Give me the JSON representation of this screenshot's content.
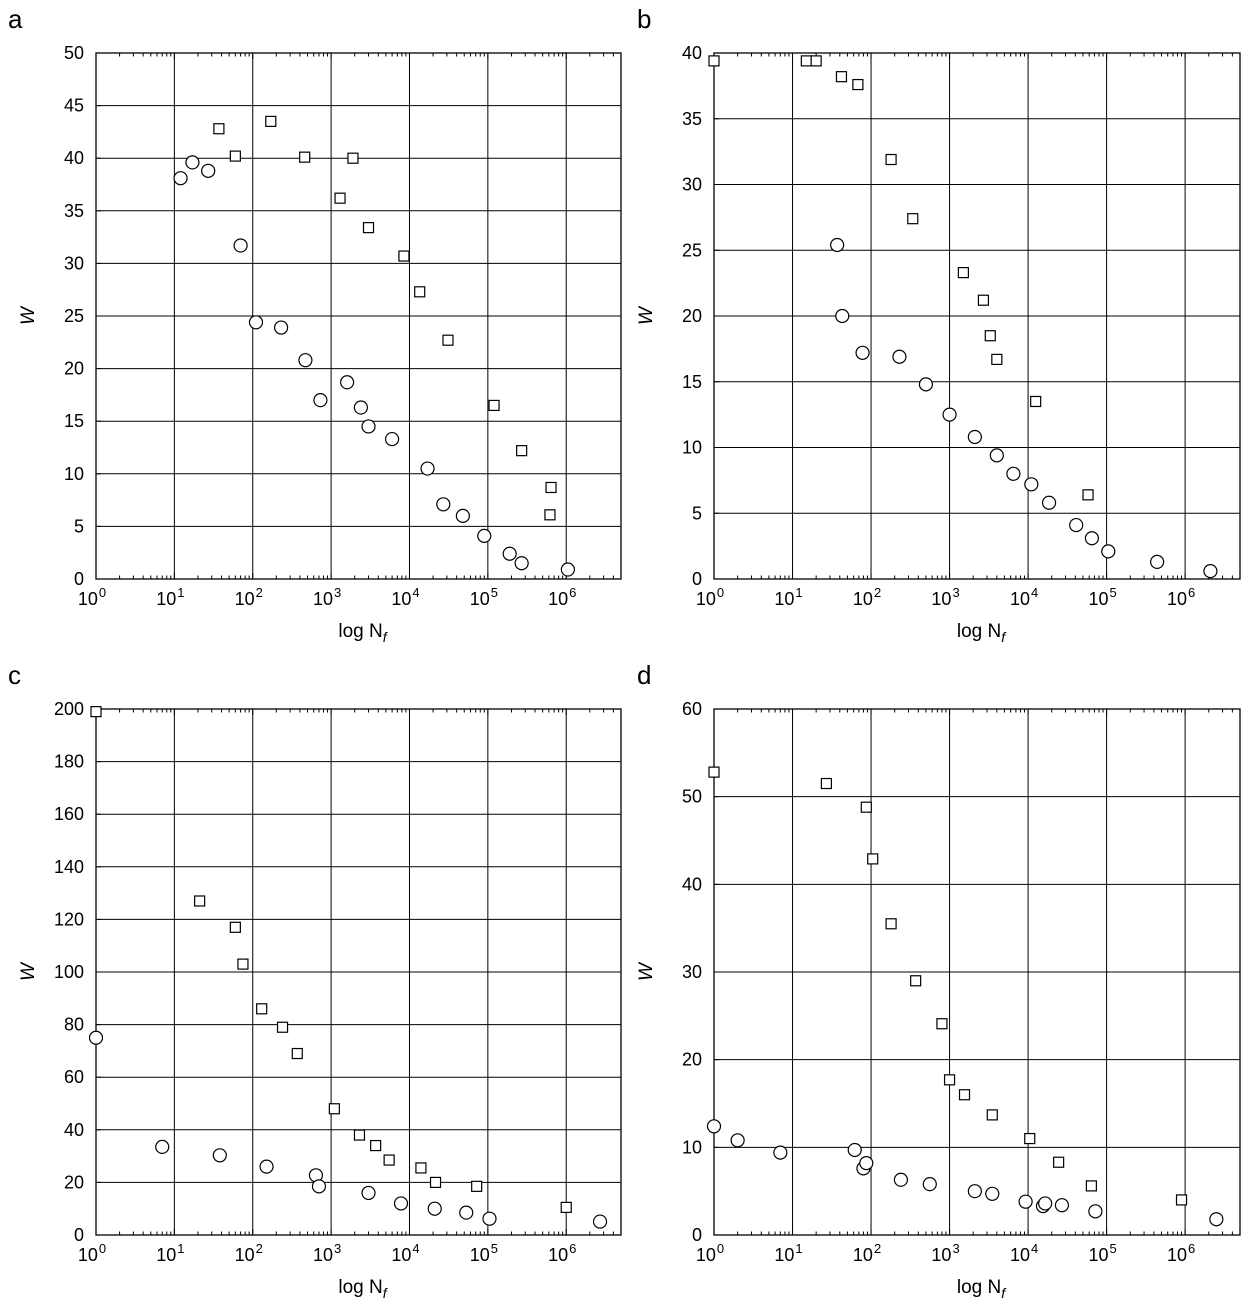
{
  "chart_data": [
    {
      "panel_label": "a",
      "type": "scatter",
      "xlabel": "log N",
      "xlabel_sub": "f",
      "ylabel": "W",
      "xscale": "log",
      "xlim": [
        1,
        5000000
      ],
      "ylim": [
        0,
        50
      ],
      "y_ticks": [
        0,
        5,
        10,
        15,
        20,
        25,
        30,
        35,
        40,
        45,
        50
      ],
      "x_tick_exponents": [
        0,
        1,
        2,
        3,
        4,
        5,
        6
      ],
      "x_tick_base": "10",
      "grid": true,
      "series": [
        {
          "marker": "square",
          "points": [
            [
              37,
              42.8
            ],
            [
              60,
              40.2
            ],
            [
              170,
              43.5
            ],
            [
              460,
              40.1
            ],
            [
              1300,
              36.2
            ],
            [
              1900,
              40.0
            ],
            [
              3000,
              33.4
            ],
            [
              8500,
              30.7
            ],
            [
              13500,
              27.3
            ],
            [
              31000,
              22.7
            ],
            [
              120000,
              16.5
            ],
            [
              270000,
              12.2
            ],
            [
              640000,
              8.7
            ],
            [
              620000,
              6.1
            ]
          ]
        },
        {
          "marker": "circle",
          "points": [
            [
              12,
              38.1
            ],
            [
              17,
              39.6
            ],
            [
              27,
              38.8
            ],
            [
              70,
              31.7
            ],
            [
              110,
              24.4
            ],
            [
              230,
              23.9
            ],
            [
              470,
              20.8
            ],
            [
              730,
              17.0
            ],
            [
              1600,
              18.7
            ],
            [
              2400,
              16.3
            ],
            [
              3000,
              14.5
            ],
            [
              6000,
              13.3
            ],
            [
              17000,
              10.5
            ],
            [
              27000,
              7.1
            ],
            [
              48000,
              6.0
            ],
            [
              90000,
              4.1
            ],
            [
              190000,
              2.4
            ],
            [
              270000,
              1.5
            ],
            [
              1050000,
              0.9
            ]
          ]
        }
      ]
    },
    {
      "panel_label": "b",
      "type": "scatter",
      "xlabel": "log N",
      "xlabel_sub": "f",
      "ylabel": "W",
      "xscale": "log",
      "xlim": [
        1,
        5000000
      ],
      "ylim": [
        0,
        40
      ],
      "y_ticks": [
        0,
        5,
        10,
        15,
        20,
        25,
        30,
        35,
        40
      ],
      "x_tick_exponents": [
        0,
        1,
        2,
        3,
        4,
        5,
        6
      ],
      "x_tick_base": "10",
      "grid": true,
      "series": [
        {
          "marker": "square",
          "points": [
            [
              1,
              39.4
            ],
            [
              15,
              39.4
            ],
            [
              20,
              39.4
            ],
            [
              42,
              38.2
            ],
            [
              68,
              37.6
            ],
            [
              180,
              31.9
            ],
            [
              340,
              27.4
            ],
            [
              1500,
              23.3
            ],
            [
              2700,
              21.2
            ],
            [
              3300,
              18.5
            ],
            [
              4000,
              16.7
            ],
            [
              12500,
              13.5
            ],
            [
              58000,
              6.4
            ]
          ]
        },
        {
          "marker": "circle",
          "points": [
            [
              37,
              25.4
            ],
            [
              43,
              20.0
            ],
            [
              78,
              17.2
            ],
            [
              230,
              16.9
            ],
            [
              500,
              14.8
            ],
            [
              1000,
              12.5
            ],
            [
              2100,
              10.8
            ],
            [
              4000,
              9.4
            ],
            [
              6500,
              8.0
            ],
            [
              11000,
              7.2
            ],
            [
              18500,
              5.8
            ],
            [
              41000,
              4.1
            ],
            [
              65000,
              3.1
            ],
            [
              105000,
              2.1
            ],
            [
              440000,
              1.3
            ],
            [
              2100000,
              0.6
            ]
          ]
        }
      ]
    },
    {
      "panel_label": "c",
      "type": "scatter",
      "xlabel": "log N",
      "xlabel_sub": "f",
      "ylabel": "W",
      "xscale": "log",
      "xlim": [
        1,
        5000000
      ],
      "ylim": [
        0,
        200
      ],
      "y_ticks": [
        0,
        20,
        40,
        60,
        80,
        100,
        120,
        140,
        160,
        180,
        200
      ],
      "x_tick_exponents": [
        0,
        1,
        2,
        3,
        4,
        5,
        6
      ],
      "x_tick_base": "10",
      "grid": true,
      "series": [
        {
          "marker": "square",
          "points": [
            [
              1,
              199
            ],
            [
              21,
              127
            ],
            [
              60,
              117
            ],
            [
              75,
              103
            ],
            [
              130,
              86
            ],
            [
              240,
              79
            ],
            [
              370,
              69
            ],
            [
              1100,
              48
            ],
            [
              2300,
              38
            ],
            [
              3700,
              34
            ],
            [
              5500,
              28.5
            ],
            [
              14000,
              25.5
            ],
            [
              21500,
              20
            ],
            [
              72000,
              18.5
            ],
            [
              1000000,
              10.5
            ]
          ]
        },
        {
          "marker": "circle",
          "points": [
            [
              1,
              75
            ],
            [
              7,
              33.5
            ],
            [
              38,
              30.3
            ],
            [
              150,
              26
            ],
            [
              640,
              22.7
            ],
            [
              700,
              18.5
            ],
            [
              3000,
              16
            ],
            [
              7800,
              12
            ],
            [
              21000,
              10
            ],
            [
              53000,
              8.5
            ],
            [
              105000,
              6.2
            ],
            [
              2700000,
              5.1
            ]
          ]
        }
      ]
    },
    {
      "panel_label": "d",
      "type": "scatter",
      "xlabel": "log N",
      "xlabel_sub": "f",
      "ylabel": "W",
      "xscale": "log",
      "xlim": [
        1,
        5000000
      ],
      "ylim": [
        0,
        60
      ],
      "y_ticks": [
        0,
        10,
        20,
        30,
        40,
        50,
        60
      ],
      "x_tick_exponents": [
        0,
        1,
        2,
        3,
        4,
        5,
        6
      ],
      "x_tick_base": "10",
      "grid": true,
      "series": [
        {
          "marker": "square",
          "points": [
            [
              1,
              52.8
            ],
            [
              27,
              51.5
            ],
            [
              87,
              48.8
            ],
            [
              105,
              42.9
            ],
            [
              180,
              35.5
            ],
            [
              370,
              29.0
            ],
            [
              800,
              24.1
            ],
            [
              1000,
              17.7
            ],
            [
              1550,
              16.0
            ],
            [
              3500,
              13.7
            ],
            [
              10500,
              11.0
            ],
            [
              24500,
              8.3
            ],
            [
              64000,
              5.6
            ],
            [
              900000,
              4.0
            ]
          ]
        },
        {
          "marker": "circle",
          "points": [
            [
              1,
              12.4
            ],
            [
              2,
              10.8
            ],
            [
              7,
              9.4
            ],
            [
              62,
              9.7
            ],
            [
              80,
              7.6
            ],
            [
              87,
              8.2
            ],
            [
              240,
              6.3
            ],
            [
              560,
              5.8
            ],
            [
              2100,
              5.0
            ],
            [
              3500,
              4.7
            ],
            [
              9300,
              3.8
            ],
            [
              15500,
              3.3
            ],
            [
              16500,
              3.6
            ],
            [
              27000,
              3.4
            ],
            [
              72000,
              2.7
            ],
            [
              2500000,
              1.8
            ]
          ]
        }
      ]
    }
  ]
}
